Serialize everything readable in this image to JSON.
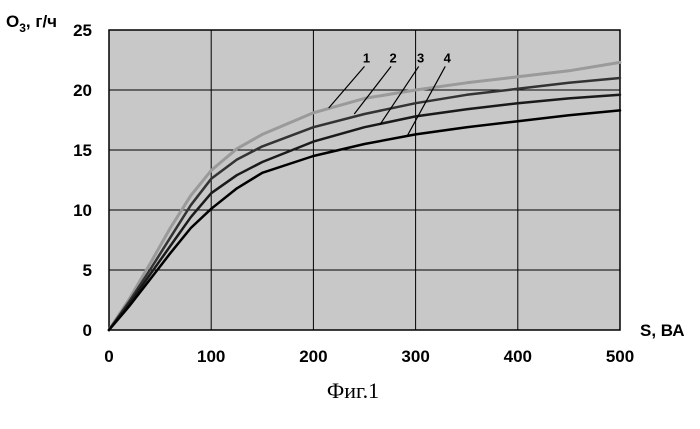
{
  "chart_data": {
    "type": "line",
    "title": "",
    "ylabel_main": "O",
    "ylabel_sub": "3",
    "ylabel_unit": ", г/ч",
    "xlabel": "S, ВА",
    "caption": "Фиг.1",
    "xlim": [
      0,
      500
    ],
    "ylim": [
      0,
      25
    ],
    "xticks": [
      0,
      100,
      200,
      300,
      400,
      500
    ],
    "yticks": [
      0,
      5,
      10,
      15,
      20,
      25
    ],
    "grid": true,
    "series": [
      {
        "name": "1",
        "color": "#9a9a9a",
        "x": [
          0,
          20,
          40,
          60,
          80,
          100,
          125,
          150,
          200,
          250,
          300,
          350,
          400,
          450,
          500
        ],
        "y": [
          0,
          2.6,
          5.5,
          8.5,
          11.2,
          13.3,
          15.1,
          16.3,
          18.1,
          19.3,
          20.0,
          20.6,
          21.1,
          21.6,
          22.3
        ]
      },
      {
        "name": "2",
        "color": "#333333",
        "x": [
          0,
          20,
          40,
          60,
          80,
          100,
          125,
          150,
          200,
          250,
          300,
          350,
          400,
          450,
          500
        ],
        "y": [
          0,
          2.4,
          5.0,
          7.7,
          10.4,
          12.6,
          14.2,
          15.3,
          16.9,
          18.0,
          18.9,
          19.6,
          20.1,
          20.6,
          21.0
        ]
      },
      {
        "name": "3",
        "color": "#1a1a1a",
        "x": [
          0,
          20,
          40,
          60,
          80,
          100,
          125,
          150,
          200,
          250,
          300,
          350,
          400,
          450,
          500
        ],
        "y": [
          0,
          2.2,
          4.6,
          7.0,
          9.4,
          11.4,
          12.9,
          14.0,
          15.7,
          16.9,
          17.8,
          18.4,
          18.9,
          19.3,
          19.6
        ]
      },
      {
        "name": "4",
        "color": "#000000",
        "x": [
          0,
          20,
          40,
          60,
          80,
          100,
          125,
          150,
          200,
          250,
          300,
          350,
          400,
          450,
          500
        ],
        "y": [
          0,
          2.0,
          4.2,
          6.4,
          8.5,
          10.1,
          11.8,
          13.1,
          14.5,
          15.5,
          16.3,
          16.9,
          17.4,
          17.9,
          18.3
        ]
      }
    ],
    "label_anchors": [
      {
        "name": "1",
        "label_x": 250,
        "label_y": 22.3,
        "point_x": 215,
        "point_y": 18.5
      },
      {
        "name": "2",
        "label_x": 276,
        "label_y": 22.3,
        "point_x": 240,
        "point_y": 18.0
      },
      {
        "name": "3",
        "label_x": 303,
        "label_y": 22.3,
        "point_x": 265,
        "point_y": 17.1
      },
      {
        "name": "4",
        "label_x": 329,
        "label_y": 22.3,
        "point_x": 292,
        "point_y": 16.2
      }
    ]
  }
}
